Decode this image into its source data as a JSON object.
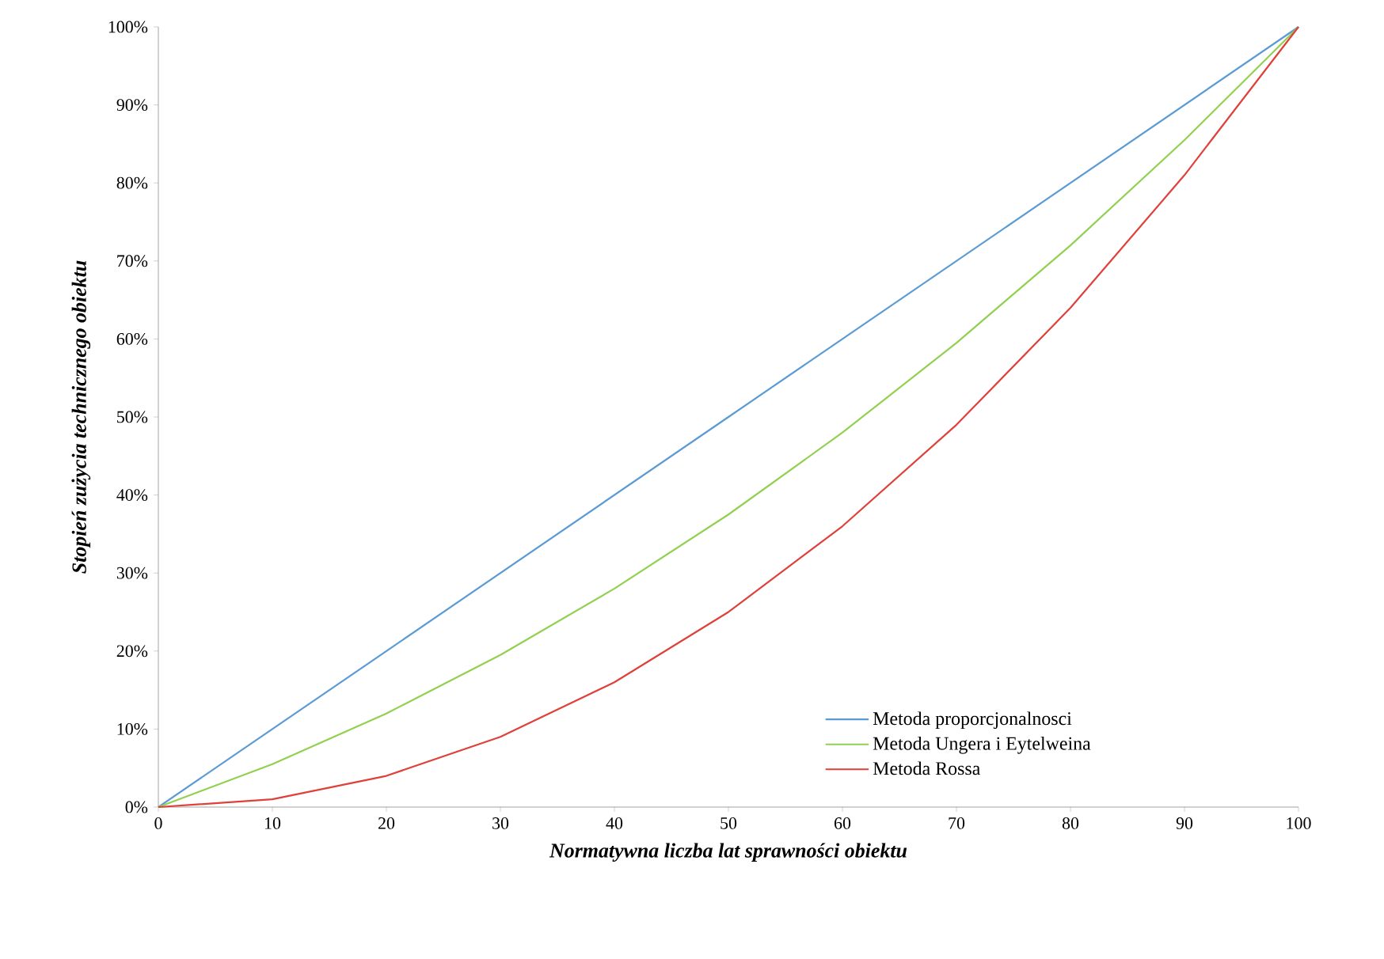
{
  "chart_data": {
    "type": "line",
    "xlabel": "Normatywna liczba lat sprawności obiektu",
    "ylabel": "Stopień zużycia technicznego obiektu",
    "x": [
      0,
      10,
      20,
      30,
      40,
      50,
      60,
      70,
      80,
      90,
      100
    ],
    "series": [
      {
        "name": "Metoda proporcjonalnosci",
        "color": "#5b9bd5",
        "values": [
          0,
          10,
          20,
          30,
          40,
          50,
          60,
          70,
          80,
          90,
          100
        ]
      },
      {
        "name": "Metoda Ungera i Eytelweina",
        "color": "#92d050",
        "values": [
          0,
          5.5,
          12,
          19.5,
          28,
          37.5,
          48,
          59.5,
          72,
          85.5,
          100
        ]
      },
      {
        "name": "Metoda Rossa",
        "color": "#e0403a",
        "values": [
          0,
          1,
          4,
          9,
          16,
          25,
          36,
          49,
          64,
          81,
          100
        ]
      }
    ],
    "xlim": [
      0,
      100
    ],
    "ylim": [
      0,
      100
    ],
    "xticks": [
      0,
      10,
      20,
      30,
      40,
      50,
      60,
      70,
      80,
      90,
      100
    ],
    "yticks": [
      {
        "value": 0,
        "label": "0%"
      },
      {
        "value": 10,
        "label": "10%"
      },
      {
        "value": 20,
        "label": "20%"
      },
      {
        "value": 30,
        "label": "30%"
      },
      {
        "value": 40,
        "label": "40%"
      },
      {
        "value": 50,
        "label": "50%"
      },
      {
        "value": 60,
        "label": "60%"
      },
      {
        "value": 70,
        "label": "70%"
      },
      {
        "value": 80,
        "label": "80%"
      },
      {
        "value": 90,
        "label": "90%"
      },
      {
        "value": 100,
        "label": "100%"
      }
    ],
    "grid": false,
    "legend": "bottom right",
    "marker": "none",
    "line_style": "solid"
  }
}
